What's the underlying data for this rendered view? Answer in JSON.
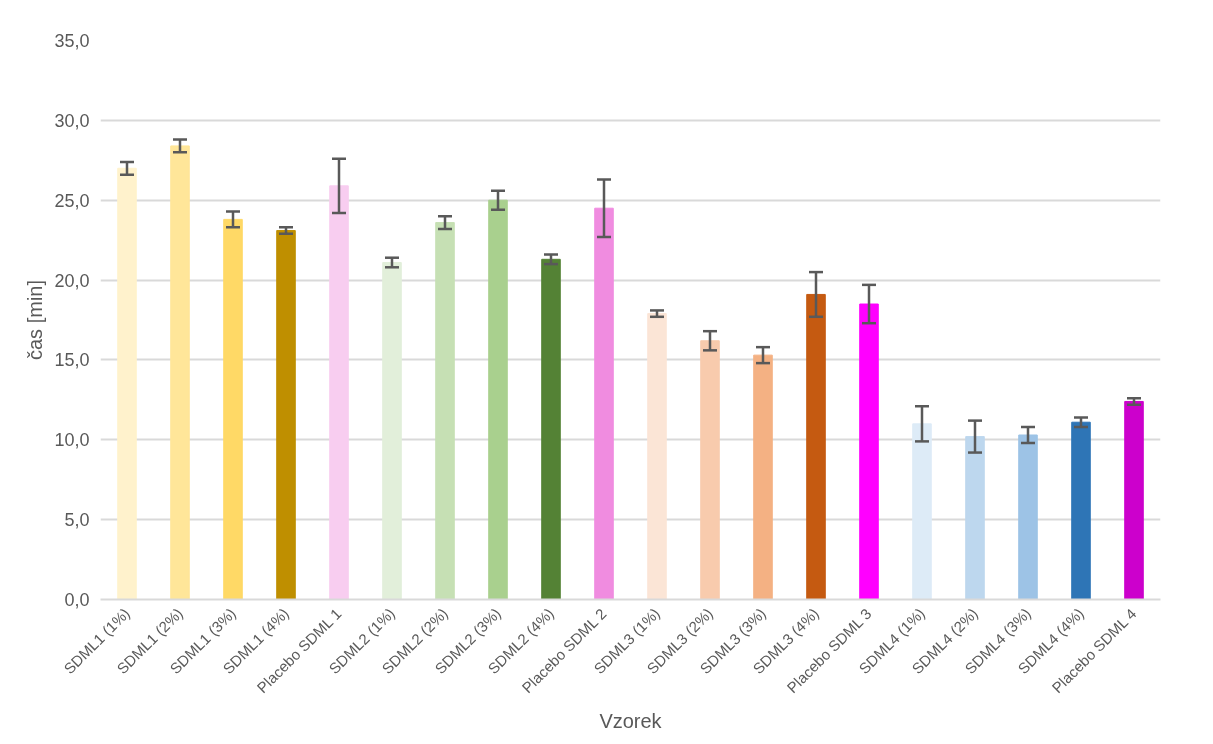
{
  "chart_data": {
    "type": "bar",
    "xlabel": "Vzorek",
    "ylabel": "čas [min]",
    "categories": [
      "SDML1 (1%)",
      "SDML1 (2%)",
      "SDML1 (3%)",
      "SDML1 (4%)",
      "Placebo SDML 1",
      "SDML2 (1%)",
      "SDML2 (2%)",
      "SDML2 (3%)",
      "SDML2 (4%)",
      "Placebo SDML 2",
      "SDML3 (1%)",
      "SDML3 (2%)",
      "SDML3 (3%)",
      "SDML3 (4%)",
      "Placebo SDML 3",
      "SDML4 (1%)",
      "SDML4 (2%)",
      "SDML4 (3%)",
      "SDML4 (4%)",
      "Placebo SDML 4"
    ],
    "values": [
      27.0,
      28.4,
      23.8,
      23.1,
      25.9,
      21.1,
      23.6,
      25.0,
      21.3,
      24.5,
      17.9,
      16.2,
      15.3,
      19.1,
      18.5,
      11.0,
      10.2,
      10.3,
      11.1,
      12.4
    ],
    "errors": [
      0.4,
      0.4,
      0.5,
      0.2,
      1.7,
      0.3,
      0.4,
      0.6,
      0.3,
      1.8,
      0.2,
      0.6,
      0.5,
      1.4,
      1.2,
      1.1,
      1.0,
      0.5,
      0.3,
      0.2
    ],
    "colors": [
      "#fff2cc",
      "#ffe699",
      "#ffd966",
      "#bf8f00",
      "#f8cdf0",
      "#e2efda",
      "#c6e0b4",
      "#a9d08e",
      "#548235",
      "#f08ce0",
      "#fbe5d6",
      "#f8cbad",
      "#f4b183",
      "#c55a11",
      "#ff00ff",
      "#ddebf7",
      "#bdd7ee",
      "#9dc3e6",
      "#2e75b6",
      "#cc00cc"
    ],
    "ylim": [
      0,
      35
    ],
    "yticks": [
      {
        "value": 0,
        "label": "0,0"
      },
      {
        "value": 5,
        "label": "5,0"
      },
      {
        "value": 10,
        "label": "10,0"
      },
      {
        "value": 15,
        "label": "15,0"
      },
      {
        "value": 20,
        "label": "20,0"
      },
      {
        "value": 25,
        "label": "25,0"
      },
      {
        "value": 30,
        "label": "30,0"
      },
      {
        "value": 35,
        "label": "35,0"
      }
    ],
    "grid": "y"
  }
}
